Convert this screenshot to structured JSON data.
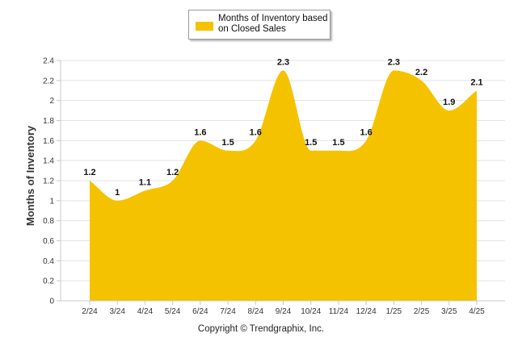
{
  "chart_data": {
    "type": "area",
    "categories": [
      "2/24",
      "3/24",
      "4/24",
      "5/24",
      "6/24",
      "7/24",
      "8/24",
      "9/24",
      "10/24",
      "11/24",
      "12/24",
      "1/25",
      "2/25",
      "3/25",
      "4/25"
    ],
    "series": [
      {
        "name": "Months of Inventory based on Closed Sales",
        "values": [
          1.2,
          1,
          1.1,
          1.2,
          1.6,
          1.5,
          1.6,
          2.3,
          1.5,
          1.5,
          1.6,
          2.3,
          2.2,
          1.9,
          2.1
        ],
        "data_labels": [
          "1.2",
          "1",
          "1.1",
          "1.2",
          "1.6",
          "1.5",
          "1.6",
          "2.3",
          "1.5",
          "1.5",
          "1.6",
          "2.3",
          "2.2",
          "1.9",
          "2.1"
        ],
        "color": "#f5c200"
      }
    ],
    "ylabel": "Months of Inventory",
    "xlabel": "",
    "ylim": [
      0,
      2.4
    ],
    "yticks": [
      "0",
      "0.2",
      "0.4",
      "0.6",
      "0.8",
      "1",
      "1.2",
      "1.4",
      "1.6",
      "1.8",
      "2",
      "2.2",
      "2.4"
    ],
    "grid": true,
    "legend_position": "top-center"
  },
  "footer": {
    "copyright": "Copyright © Trendgraphix, Inc."
  }
}
